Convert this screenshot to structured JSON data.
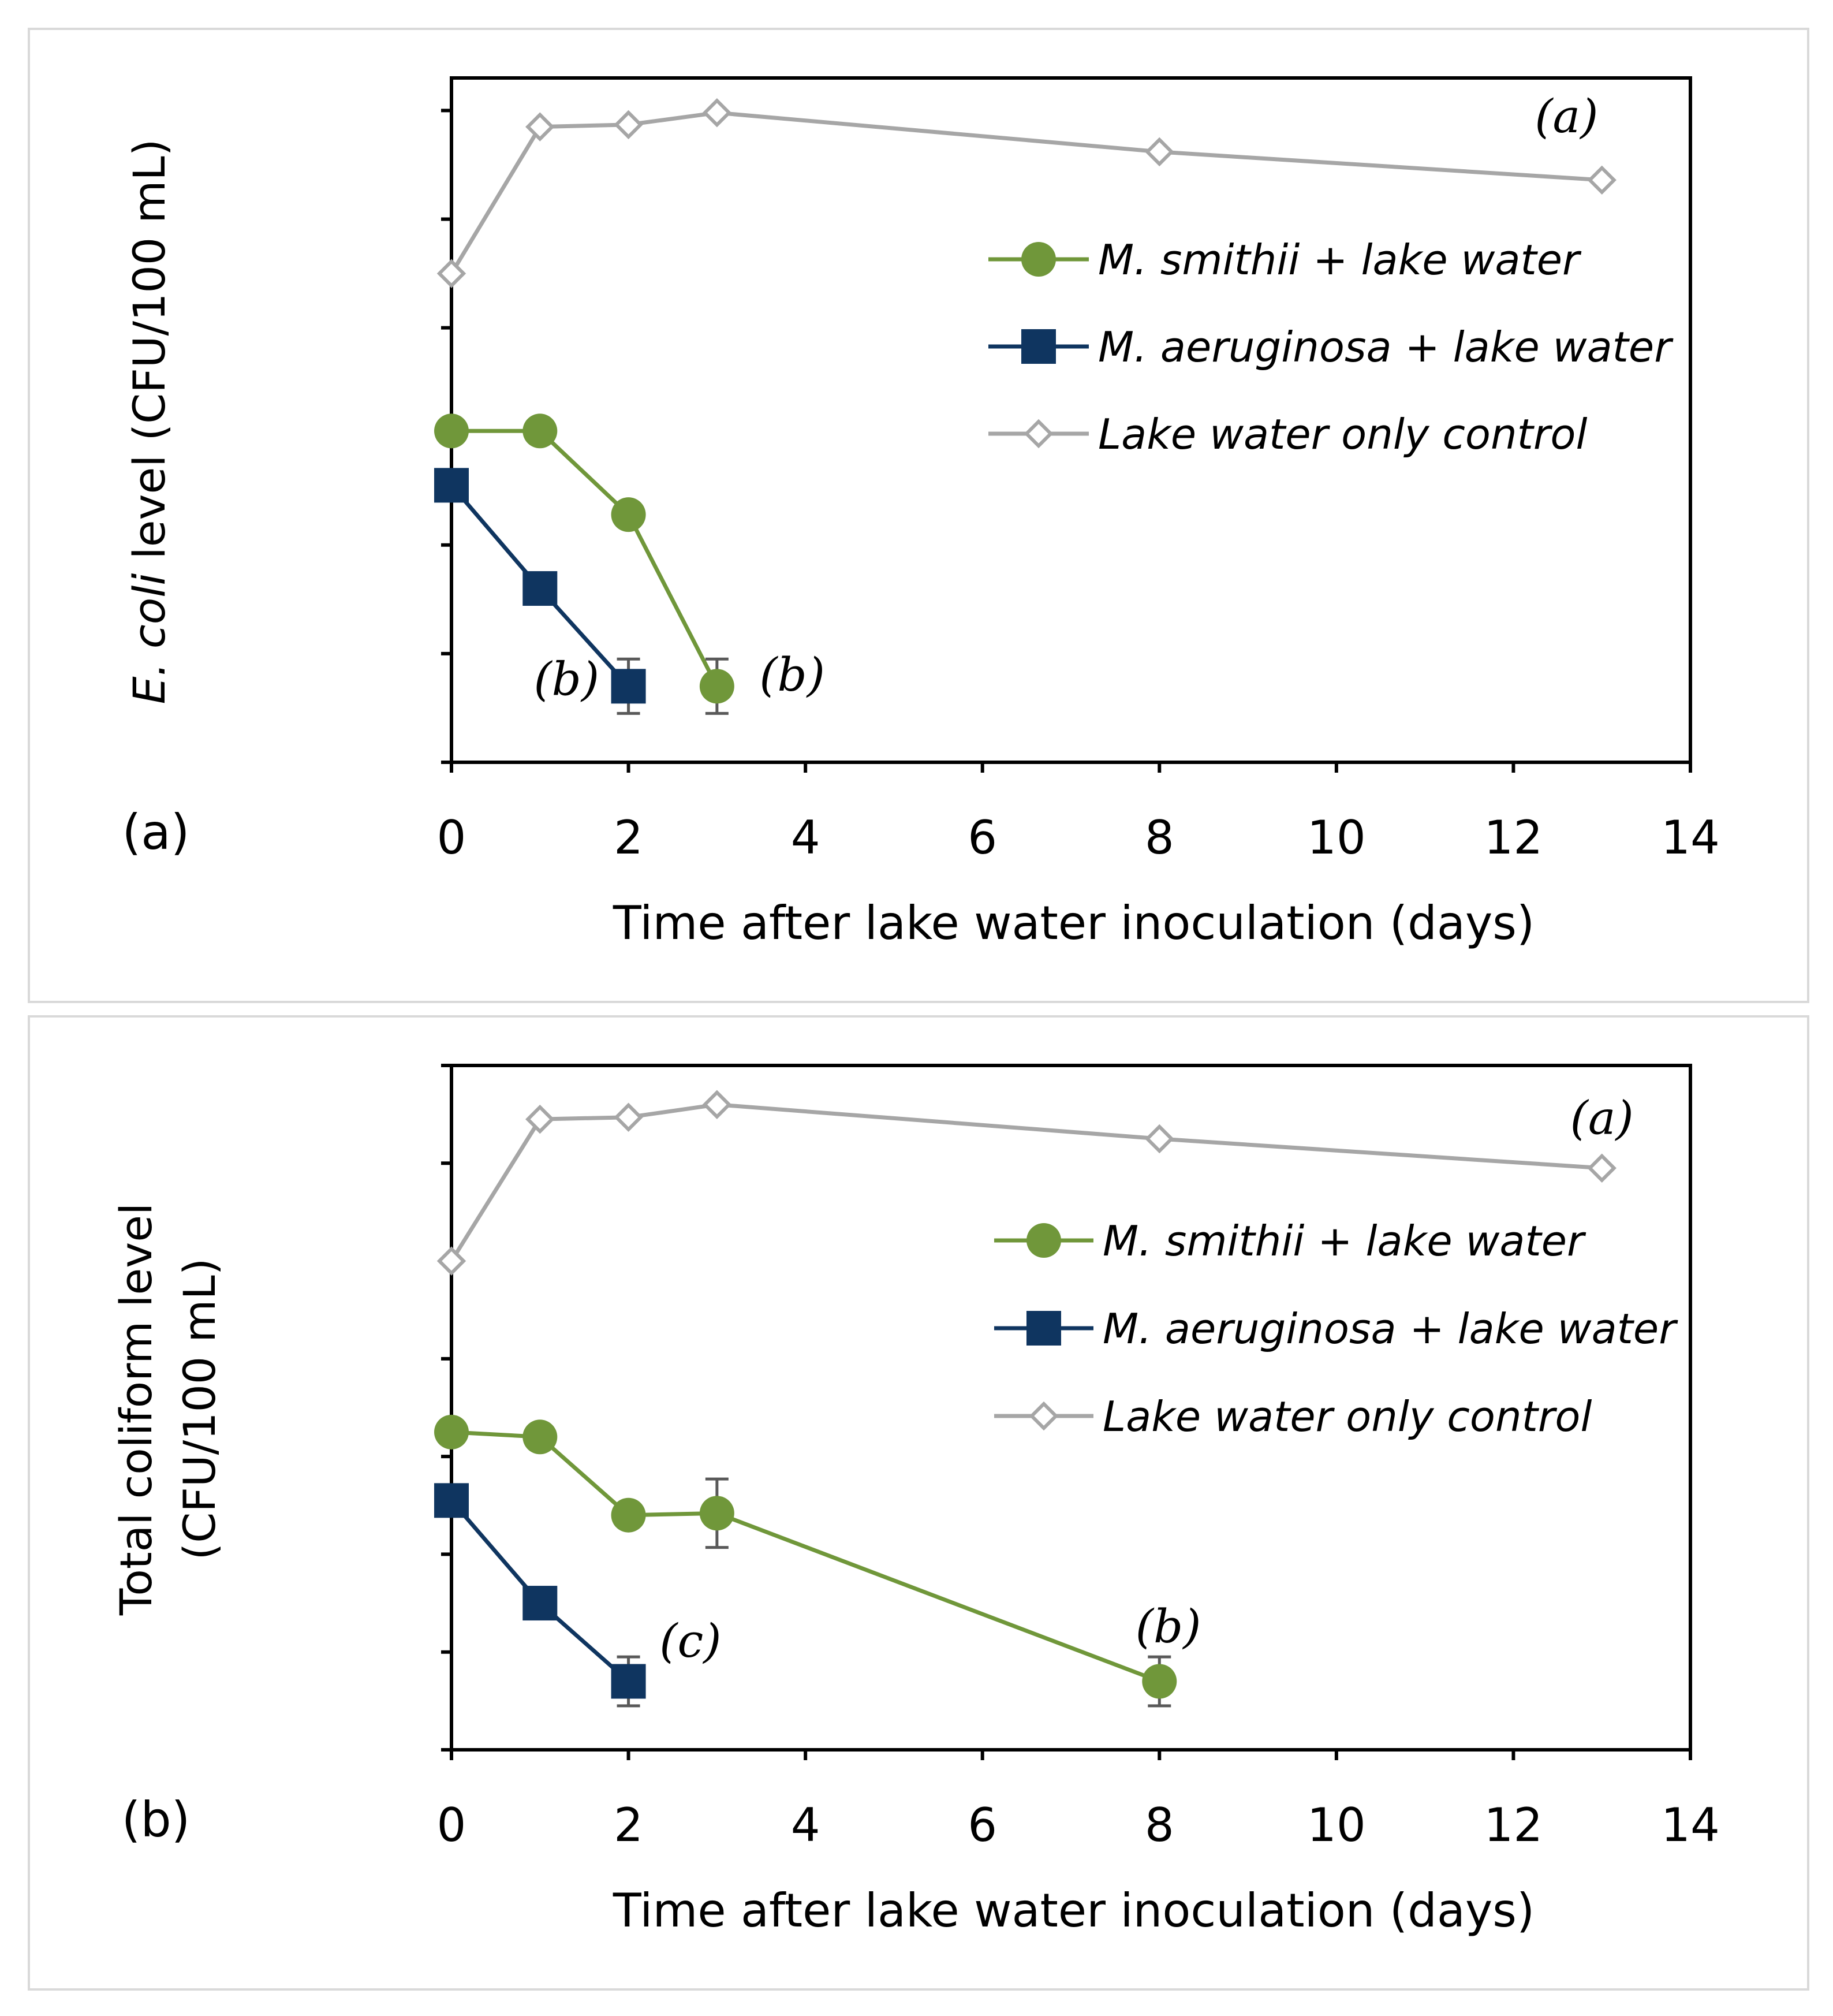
{
  "colors": {
    "green": "#70973A",
    "navy": "#0F3560",
    "gray": "#A6A6A6",
    "errorbar": "#595959",
    "frame": "#D9D9D9"
  },
  "legend": {
    "items": [
      {
        "label": "M. smithii + lake water",
        "series": "green",
        "marker": "circle"
      },
      {
        "label": "M. aeruginosa + lake water",
        "series": "navy",
        "marker": "square"
      },
      {
        "label": "Lake water only control",
        "series": "gray",
        "marker": "diamond-open"
      }
    ]
  },
  "chart_data": [
    {
      "type": "line",
      "panel_label": "(a)",
      "ylabel_italic": "E. coli",
      "ylabel_rest": " level (CFU/100 mL)",
      "xlabel": "Time after lake water inoculation (days)",
      "xlim": [
        0,
        14
      ],
      "xticks": [
        "0",
        "2",
        "4",
        "6",
        "8",
        "10",
        "12",
        "14"
      ],
      "ylim": [
        0,
        6.3
      ],
      "yticks": [
        0,
        1,
        2,
        3,
        4,
        5,
        6
      ],
      "ytick_labels_shown": false,
      "series": [
        {
          "name": "M. smithii + lake water",
          "key": "green",
          "marker": "circle",
          "x": [
            0,
            1,
            2,
            3
          ],
          "y": [
            3.05,
            3.05,
            2.28,
            0.7
          ],
          "err": [
            0,
            0,
            0,
            0.25
          ]
        },
        {
          "name": "M. aeruginosa + lake water",
          "key": "navy",
          "marker": "square",
          "x": [
            0,
            1,
            2
          ],
          "y": [
            2.55,
            1.6,
            0.7
          ],
          "err": [
            0,
            0,
            0.25
          ]
        },
        {
          "name": "Lake water only control",
          "key": "gray",
          "marker": "diamond-open",
          "x": [
            0,
            1,
            2,
            3,
            8,
            13
          ],
          "y": [
            4.5,
            5.85,
            5.87,
            5.98,
            5.62,
            5.36
          ],
          "err": [
            0,
            0,
            0,
            0,
            0,
            0
          ]
        }
      ],
      "annotations": [
        {
          "text": "(a)",
          "x": 12.6,
          "y": 5.8
        },
        {
          "text": "(b)",
          "x": 1.3,
          "y": 0.62
        },
        {
          "text": "(b)",
          "x": 3.85,
          "y": 0.66
        }
      ]
    },
    {
      "type": "line",
      "panel_label": "(b)",
      "ylabel_line1": "Total coliform level",
      "ylabel_line2": "(CFU/100 mL)",
      "xlabel": "Time after lake water inoculation (days)",
      "xlim": [
        0,
        14
      ],
      "xticks": [
        "0",
        "2",
        "4",
        "6",
        "8",
        "10",
        "12",
        "14"
      ],
      "ylim": [
        0,
        7.0
      ],
      "yticks": [
        0,
        1,
        2,
        3,
        4,
        5,
        6,
        7
      ],
      "ytick_labels_shown": false,
      "series": [
        {
          "name": "M. smithii + lake water",
          "key": "green",
          "marker": "circle",
          "x": [
            0,
            1,
            2,
            3,
            8
          ],
          "y": [
            3.25,
            3.2,
            2.4,
            2.42,
            0.7
          ],
          "err": [
            0,
            0,
            0,
            0.35,
            0.25
          ]
        },
        {
          "name": "M. aeruginosa + lake water",
          "key": "navy",
          "marker": "square",
          "x": [
            0,
            1,
            2
          ],
          "y": [
            2.55,
            1.5,
            0.7
          ],
          "err": [
            0,
            0,
            0.25
          ]
        },
        {
          "name": "Lake water only control",
          "key": "gray",
          "marker": "diamond-open",
          "x": [
            0,
            1,
            2,
            3,
            8,
            13
          ],
          "y": [
            5.0,
            6.45,
            6.47,
            6.6,
            6.25,
            5.95
          ],
          "err": [
            0,
            0,
            0,
            0,
            0,
            0
          ]
        }
      ],
      "annotations": [
        {
          "text": "(a)",
          "x": 13.0,
          "y": 6.3
        },
        {
          "text": "(c)",
          "x": 2.7,
          "y": 0.95
        },
        {
          "text": "(b)",
          "x": 8.1,
          "y": 1.1
        }
      ]
    }
  ]
}
